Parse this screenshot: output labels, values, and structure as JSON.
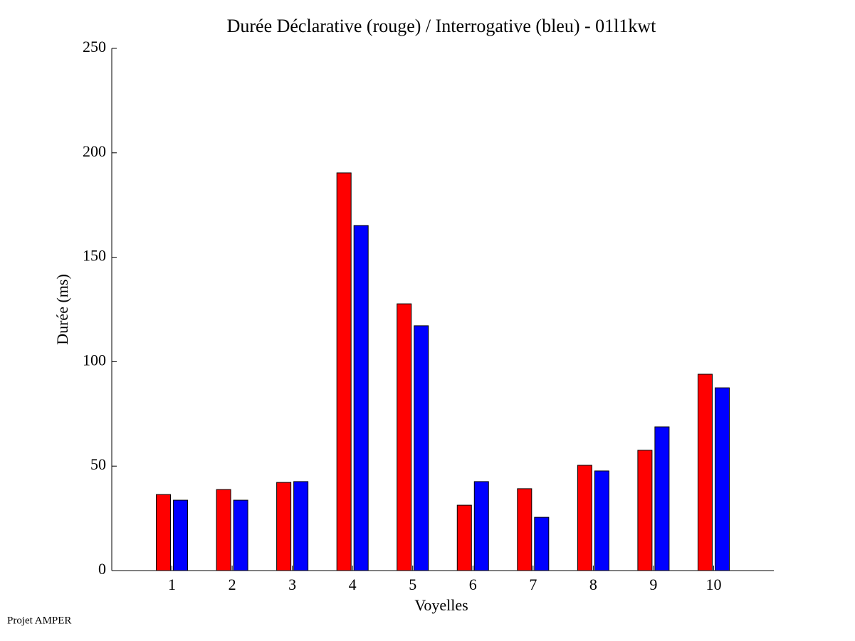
{
  "chart_data": {
    "type": "bar",
    "title": "Durée Déclarative (rouge) / Interrogative (bleu) - 01l1kwt",
    "x_label": "Voyelles",
    "y_label": "Durée (ms)",
    "footer": "Projet AMPER",
    "x": [
      1,
      2,
      3,
      4,
      5,
      6,
      7,
      8,
      9,
      10
    ],
    "series": [
      {
        "color": "#ff0000",
        "values": [
          36.4,
          38.8,
          42.2,
          190.4,
          127.7,
          31.3,
          39.2,
          50.4,
          57.6,
          94.0
        ]
      },
      {
        "color": "#0000ff",
        "values": [
          33.7,
          33.7,
          42.6,
          165.2,
          117.2,
          42.6,
          25.5,
          47.7,
          68.8,
          87.5
        ]
      }
    ],
    "xlim": [
      0,
      11
    ],
    "xticks": [
      1,
      2,
      3,
      4,
      5,
      6,
      7,
      8,
      9,
      10
    ],
    "ylim": [
      0,
      250
    ],
    "yticks": [
      0,
      50,
      100,
      150,
      200,
      250
    ],
    "grid": false
  }
}
